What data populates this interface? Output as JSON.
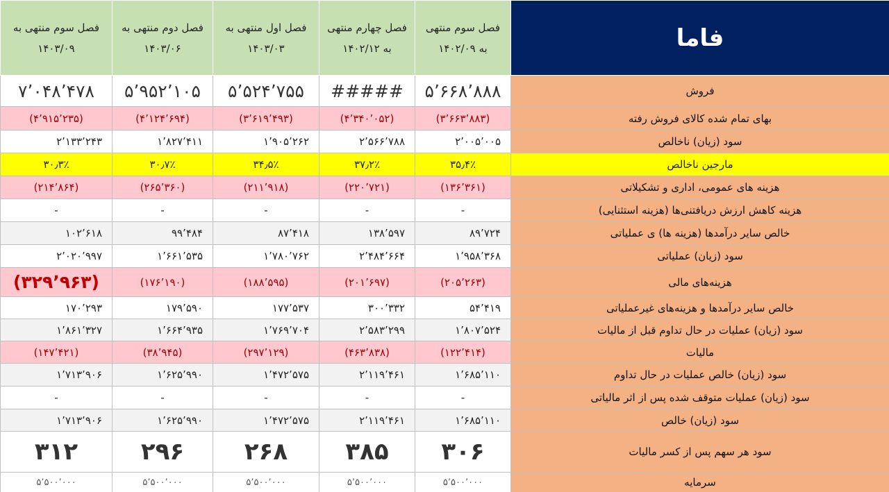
{
  "table": {
    "title": "فاما",
    "columns": [
      [
        "فصل سوم منتهی",
        "به ۱۴۰۲/۰۹"
      ],
      [
        "فصل چهارم منتهی",
        "به ۱۴۰۲/۱۲"
      ],
      [
        "فصل اول منتهی به",
        "۱۴۰۳/۰۳"
      ],
      [
        "فصل دوم منتهی به",
        "۱۴۰۳/۰۶"
      ],
      [
        "فصل سوم منتهی به",
        "۱۴۰۳/۰۹"
      ]
    ],
    "rows": [
      {
        "label": "فروش",
        "cells": [
          "۵٬۶۶۸٬۸۸۸",
          "#####",
          "۵٬۵۲۴٬۷۵۵",
          "۵٬۹۵۲٬۱۰۵",
          "۷٬۰۴۸٬۴۷۸"
        ]
      },
      {
        "label": "بهای تمام شده کالای فروش رفته",
        "cells": [
          "(۳٬۶۶۳٬۸۸۳)",
          "(۴٬۳۴۰٬۰۵۲)",
          "(۳٬۶۱۹٬۴۹۳)",
          "(۴٬۱۲۴٬۶۹۴)",
          "(۴٬۹۱۵٬۲۳۵)"
        ]
      },
      {
        "label": "سود (زیان) ناخالص",
        "cells": [
          "۲٬۰۰۵٬۰۰۵",
          "۲٬۵۶۶٬۷۸۸",
          "۱٬۹۰۵٬۲۶۲",
          "۱٬۸۲۷٬۴۱۱",
          "۲٬۱۳۳٬۲۴۳"
        ]
      },
      {
        "label": "مارجین ناخالص",
        "cells": [
          "۳۵٫۴٪",
          "۳۷٫۲٪",
          "۳۴٫۵٪",
          "۳۰٫۷٪",
          "۳۰٫۳٪"
        ]
      },
      {
        "label": "هزینه های عمومی، اداری و تشکیلاتی",
        "cells": [
          "(۱۳۶٬۳۶۱)",
          "(۲۲۰٬۷۲۱)",
          "(۲۱۱٬۹۱۸)",
          "(۲۶۵٬۳۶۰)",
          "(۲۱۴٬۸۶۴)"
        ]
      },
      {
        "label": "هزینه کاهش ارزش دریافتنی‌ها (هزینه استثنایی)",
        "cells": [
          "-",
          "-",
          "-",
          "-",
          "-"
        ]
      },
      {
        "label": "خالص سایر درآمدها (هزینه ها) ی عملیاتی",
        "cells": [
          "۸۹٬۷۲۴",
          "۱۳۸٬۵۹۷",
          "۸۷٬۴۱۸",
          "۹۹٬۴۸۴",
          "۱۰۲٬۶۱۸"
        ]
      },
      {
        "label": "سود (زیان) عملیاتی",
        "cells": [
          "۱٬۹۵۸٬۳۶۸",
          "۲٬۴۸۴٬۶۶۴",
          "۱٬۷۸۰٬۷۶۲",
          "۱٬۶۶۱٬۵۳۵",
          "۲٬۰۲۰٬۹۹۷"
        ]
      },
      {
        "label": "هزینه‌های مالی",
        "cells": [
          "(۲۰۵٬۲۶۳)",
          "(۲۰۱٬۶۹۷)",
          "(۱۸۸٬۵۹۵)",
          "(۱۷۶٬۱۹۰)",
          "(۳۲۹٬۹۶۳)"
        ]
      },
      {
        "label": "خالص سایر درآمدها و هزینه‌های غیرعملیاتی",
        "cells": [
          "۵۴٬۴۱۹",
          "۳۰۰٬۳۳۲",
          "۱۷۷٬۵۳۷",
          "۱۷۹٬۵۹۰",
          "۱۷۰٬۲۹۳"
        ]
      },
      {
        "label": "سود (زیان) عملیات در حال تداوم قبل از مالیات",
        "cells": [
          "۱٬۸۰۷٬۵۲۴",
          "۲٬۵۸۳٬۲۹۹",
          "۱٬۷۶۹٬۷۰۴",
          "۱٬۶۶۴٬۹۳۵",
          "۱٬۸۶۱٬۳۲۷"
        ]
      },
      {
        "label": "مالیات",
        "cells": [
          "(۱۲۲٬۴۱۴)",
          "(۴۶۳٬۸۳۸)",
          "(۲۹۷٬۱۲۹)",
          "(۳۸٬۹۴۵)",
          "(۱۴۷٬۴۲۱)"
        ]
      },
      {
        "label": "سود (زیان) خالص عملیات در حال تداوم",
        "cells": [
          "۱٬۶۸۵٬۱۱۰",
          "۲٬۱۱۹٬۴۶۱",
          "۱٬۴۷۲٬۵۷۵",
          "۱٬۶۲۵٬۹۹۰",
          "۱٬۷۱۳٬۹۰۶"
        ]
      },
      {
        "label": "سود (زیان) عملیات متوقف شده پس از اثر مالیاتی",
        "cells": [
          "-",
          "-",
          "-",
          "-",
          "-"
        ]
      },
      {
        "label": "سود (زیان) خالص",
        "cells": [
          "۱٬۶۸۵٬۱۱۰",
          "۲٬۱۱۹٬۴۶۱",
          "۱٬۴۷۲٬۵۷۵",
          "۱٬۶۲۵٬۹۹۰",
          "۱٬۷۱۳٬۹۰۶"
        ]
      },
      {
        "label": "سود هر سهم پس از کسر مالیات",
        "cells": [
          "۳۰۶",
          "۳۸۵",
          "۲۶۸",
          "۲۹۶",
          "۳۱۲"
        ]
      },
      {
        "label": "سرمایه",
        "cells": [
          "۵٬۵۰۰٬۰۰۰",
          "۵٬۵۰۰٬۰۰۰",
          "۵٬۵۰۰٬۰۰۰",
          "۵٬۵۰۰٬۰۰۰",
          "۵٬۵۰۰٬۰۰۰"
        ]
      }
    ]
  }
}
